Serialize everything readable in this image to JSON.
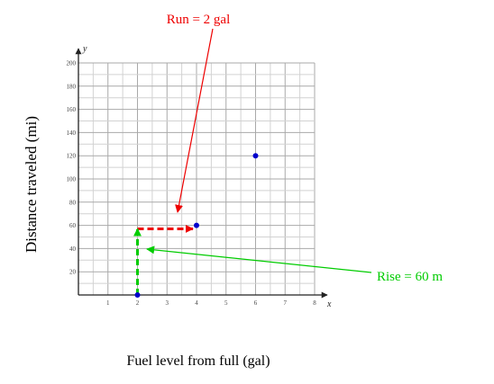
{
  "chart_data": {
    "type": "scatter",
    "xlabel": "Fuel level from full (gal)",
    "ylabel": "Distance traveled (mi)",
    "x_axis_letter": "x",
    "y_axis_letter": "y",
    "xlim": [
      0,
      8
    ],
    "ylim": [
      0,
      200
    ],
    "x_ticks": [
      "1",
      "2",
      "3",
      "4",
      "5",
      "6",
      "7",
      "8"
    ],
    "y_ticks": [
      "20",
      "40",
      "60",
      "80",
      "100",
      "120",
      "140",
      "160",
      "180",
      "200"
    ],
    "grid": true,
    "points": [
      {
        "x": 2,
        "y": 0
      },
      {
        "x": 4,
        "y": 60
      },
      {
        "x": 6,
        "y": 120
      }
    ],
    "point_color": "#0000cc",
    "annotations": {
      "run": {
        "label": "Run = 2 gal",
        "color": "#ee0000",
        "from": [
          2,
          57
        ],
        "to": [
          4,
          57
        ]
      },
      "rise": {
        "label": "Rise = 60 m",
        "color": "#00cc00",
        "from": [
          2,
          0
        ],
        "to": [
          2,
          57
        ]
      }
    }
  }
}
